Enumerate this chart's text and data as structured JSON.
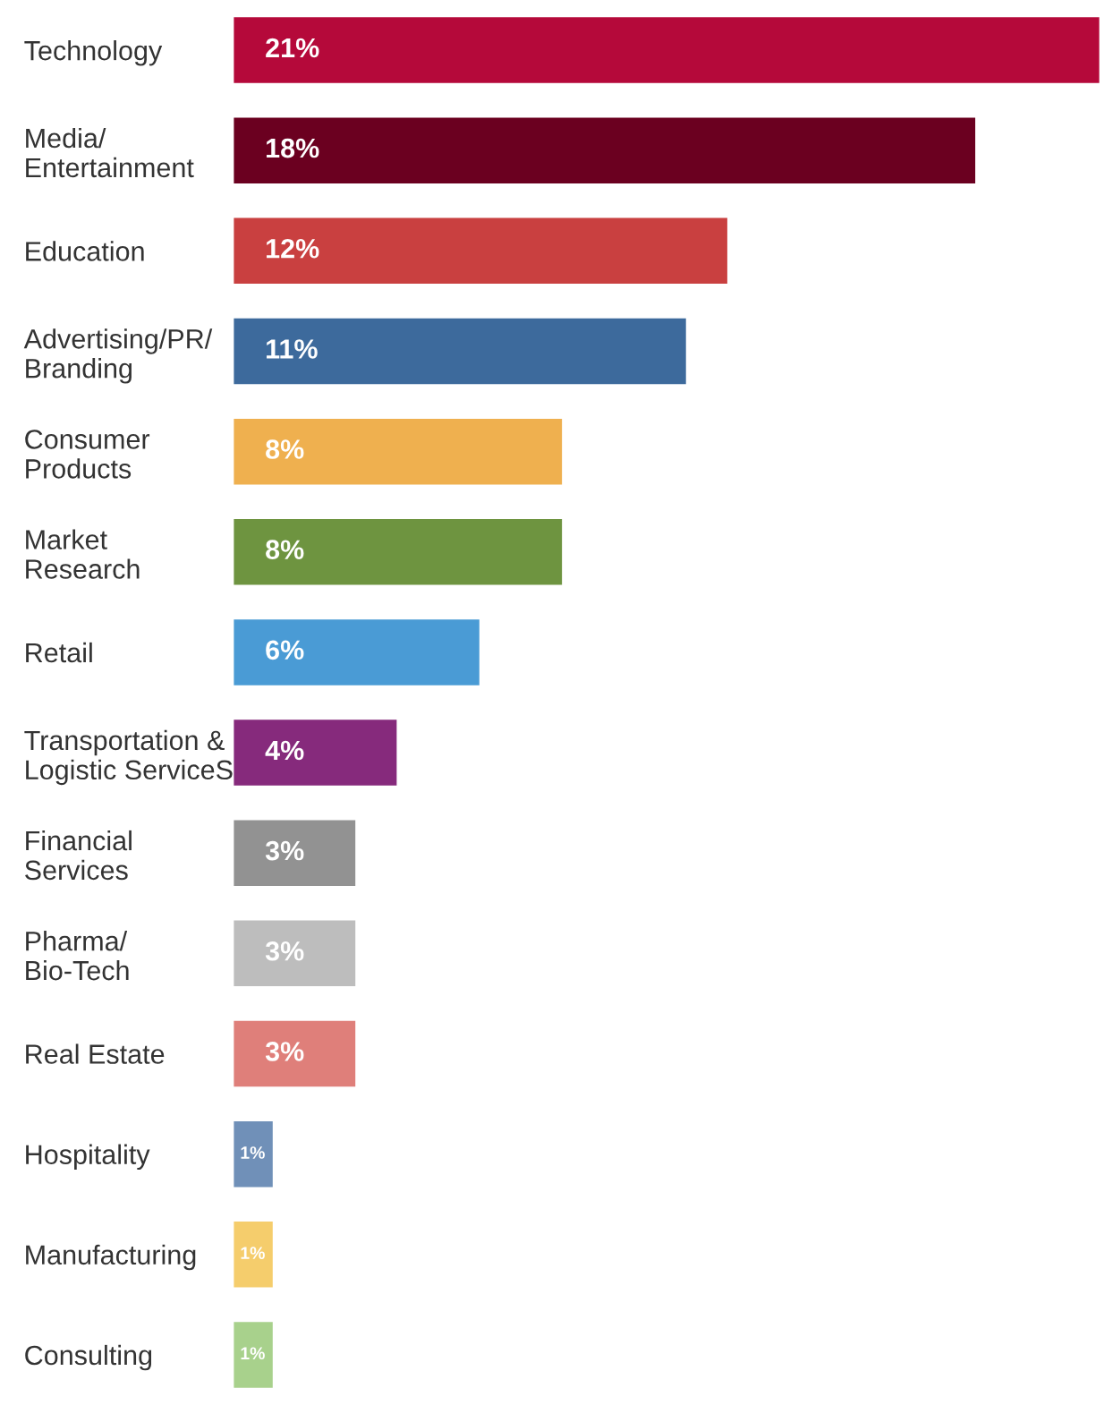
{
  "chart_data": {
    "type": "bar",
    "orientation": "horizontal",
    "categories": [
      "Technology",
      "Media/\nEntertainment",
      "Education",
      "Advertising/PR/\nBranding",
      "Consumer\nProducts",
      "Market\nResearch",
      "Retail",
      "Transportation &\nLogistic ServiceS",
      "Financial\nServices",
      "Pharma/\nBio-Tech",
      "Real Estate",
      "Hospitality",
      "Manufacturing",
      "Consulting"
    ],
    "values": [
      21,
      18,
      12,
      11,
      8,
      8,
      6,
      4,
      3,
      3,
      3,
      1,
      1,
      1
    ],
    "value_labels": [
      "21%",
      "18%",
      "12%",
      "11%",
      "8%",
      "8%",
      "6%",
      "4%",
      "3%",
      "3%",
      "3%",
      "1%",
      "1%",
      "1%"
    ],
    "colors": [
      "#b5093a",
      "#6b0020",
      "#c94040",
      "#3d6a9c",
      "#efb04f",
      "#6e9440",
      "#4a9bd5",
      "#862a7c",
      "#929292",
      "#bdbdbd",
      "#df7f7a",
      "#7090b8",
      "#f5cd6c",
      "#a8d18c"
    ],
    "xlim": [
      0,
      21
    ],
    "tick_labels": "y",
    "grid": false,
    "legend": false
  }
}
